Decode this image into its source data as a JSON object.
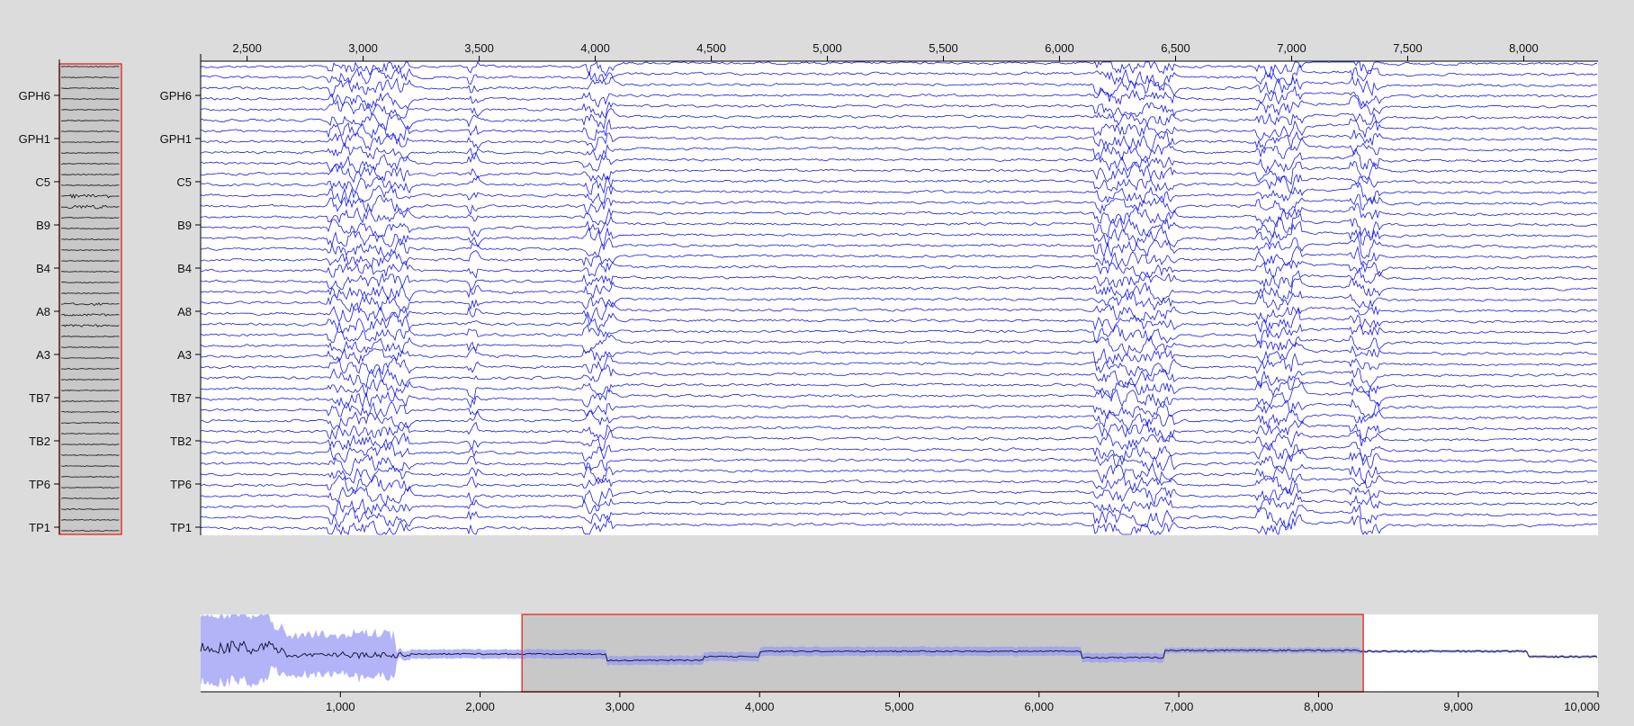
{
  "chart_data": [
    {
      "type": "line",
      "panel": "channel-overview-thumbnail",
      "channels": [
        "GPH6",
        "GPH1",
        "C5",
        "B9",
        "B4",
        "A8",
        "A3",
        "TB7",
        "TB2",
        "TP6",
        "TP1"
      ],
      "trace_count": 44,
      "colors": {
        "trace": "#111111",
        "background": "#c8c8c8",
        "selection": "#e53935"
      }
    },
    {
      "type": "line",
      "panel": "main-signal-traces",
      "x_ticks": [
        "2,500",
        "3,000",
        "3,500",
        "4,000",
        "4,500",
        "5,000",
        "5,500",
        "6,000",
        "6,500",
        "7,000",
        "7,500",
        "8,000"
      ],
      "x_tick_values": [
        2500,
        3000,
        3500,
        4000,
        4500,
        5000,
        5500,
        6000,
        6500,
        7000,
        7500,
        8000
      ],
      "xlim": [
        2300,
        8320
      ],
      "channels": [
        "GPH6",
        "GPH1",
        "C5",
        "B9",
        "B4",
        "A8",
        "A3",
        "TB7",
        "TB2",
        "TP6",
        "TP1"
      ],
      "trace_count": 44,
      "artifact_regions": [
        [
          2850,
          3200
        ],
        [
          3450,
          3500
        ],
        [
          3950,
          4080
        ],
        [
          6150,
          6500
        ],
        [
          6850,
          7050
        ],
        [
          7250,
          7380
        ]
      ],
      "colors": {
        "trace": "#1a1ae6",
        "background": "#ffffff"
      }
    },
    {
      "type": "area",
      "panel": "time-navigator",
      "x_ticks": [
        "1,000",
        "2,000",
        "3,000",
        "4,000",
        "5,000",
        "6,000",
        "7,000",
        "8,000",
        "9,000",
        "10,000"
      ],
      "x_tick_values": [
        1000,
        2000,
        3000,
        4000,
        5000,
        6000,
        7000,
        8000,
        9000,
        10000
      ],
      "xlim": [
        0,
        10000
      ],
      "selection": [
        2300,
        8320
      ],
      "colors": {
        "mean": "#1a1a40",
        "band": "#9a9af5",
        "selection_fill": "#c8c8c8",
        "selection_border": "#e53935"
      }
    }
  ]
}
